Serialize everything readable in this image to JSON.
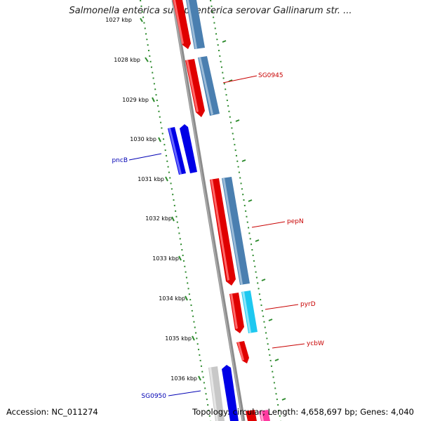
{
  "title": "Salmonella enterica subsp. enterica serovar Gallinarum str. ...",
  "ticks": [
    "1027 kbp",
    "1028 kbp",
    "1029 kbp",
    "1030 kbp",
    "1031 kbp",
    "1032 kbp",
    "1033 kbp",
    "1034 kbp",
    "1035 kbp",
    "1036 kbp"
  ],
  "gene_labels": {
    "sg0945": "SG0945",
    "pepn": "pepN",
    "pyrd": "pyrD",
    "ycbw": "ycbW",
    "pncb": "pncB",
    "sg0950": "SG0950"
  },
  "footer": {
    "accession": "Accession: NC_011274",
    "summary": "Topology: circular; Length: 4,658,697 bp; Genes: 4,040"
  },
  "colors": {
    "backbone": "#8c8c8c",
    "tick": "#2e8b2e",
    "forward_cds": "#e00000",
    "forward_match": "#4a7fb0",
    "reverse_cds": "#0000e6",
    "light_blue": "#1ec8f0",
    "gray_feature": "#c8c8c8",
    "pink_feature": "#ff3aa0",
    "label_red": "#c80000",
    "label_blue": "#0000b4"
  }
}
